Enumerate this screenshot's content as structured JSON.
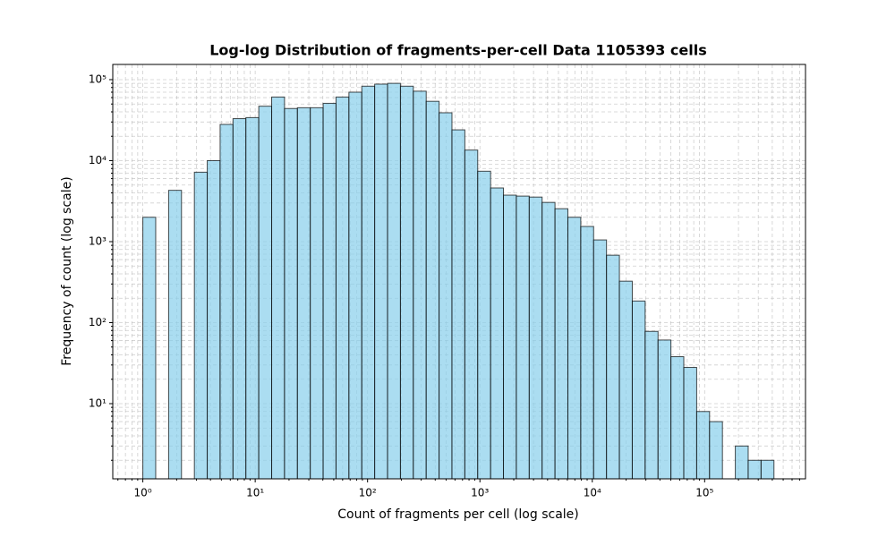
{
  "chart_data": {
    "type": "histogram",
    "title": "Log-log Distribution of fragments-per-cell Data 1105393 cells",
    "xlabel": "Count of fragments per cell (log scale)",
    "ylabel": "Frequency of count (log scale)",
    "bins": [
      1,
      1.302,
      1.696,
      2.208,
      2.875,
      3.743,
      4.873,
      6.345,
      8.262,
      10.76,
      14.01,
      18.24,
      23.75,
      30.92,
      40.26,
      52.42,
      68.25,
      88.86,
      115.7,
      150.7,
      196.2,
      255.4,
      332.6,
      433.1,
      563.9,
      734.2,
      955.9,
      1245,
      1620,
      2110,
      2748,
      3577,
      4658,
      6065,
      7897,
      10282,
      13388,
      17432,
      22697,
      29553,
      38480,
      50104,
      65238,
      84943,
      110600,
      144010,
      187510,
      244150,
      317900,
      413920
    ],
    "values": [
      2000,
      0,
      4300,
      0,
      7200,
      10000,
      28000,
      33000,
      34000,
      47000,
      61000,
      44000,
      45000,
      45000,
      51000,
      61000,
      70000,
      83000,
      88000,
      90000,
      83000,
      72000,
      54000,
      39000,
      24000,
      13500,
      7400,
      4600,
      3750,
      3650,
      3550,
      3050,
      2550,
      2000,
      1540,
      1050,
      680,
      325,
      185,
      78,
      61,
      38,
      28,
      8,
      6,
      0,
      3,
      2,
      2
    ],
    "color": "#87ceeb",
    "xscale": "log",
    "yscale": "log",
    "grid": true,
    "xlim": [
      0.54,
      790000
    ],
    "ylim": [
      1.18,
      154000
    ],
    "xticks": [
      {
        "value": 1,
        "label": "10⁰"
      },
      {
        "value": 10,
        "label": "10¹"
      },
      {
        "value": 100,
        "label": "10²"
      },
      {
        "value": 1000,
        "label": "10³"
      },
      {
        "value": 10000,
        "label": "10⁴"
      },
      {
        "value": 100000,
        "label": "10⁵"
      }
    ],
    "yticks": [
      {
        "value": 10,
        "label": "10¹"
      },
      {
        "value": 100,
        "label": "10²"
      },
      {
        "value": 1000,
        "label": "10³"
      },
      {
        "value": 10000,
        "label": "10⁴"
      },
      {
        "value": 100000,
        "label": "10⁵"
      }
    ],
    "xminor_ticks": [
      0.6,
      0.7,
      0.8,
      0.9,
      2,
      3,
      4,
      5,
      6,
      7,
      8,
      9,
      20,
      30,
      40,
      50,
      60,
      70,
      80,
      90,
      200,
      300,
      400,
      500,
      600,
      700,
      800,
      900,
      2000,
      3000,
      4000,
      5000,
      6000,
      7000,
      8000,
      9000,
      20000,
      30000,
      40000,
      50000,
      60000,
      70000,
      80000,
      90000,
      200000,
      300000,
      400000,
      500000,
      600000,
      700000
    ],
    "yminor_ticks": [
      2,
      3,
      4,
      5,
      6,
      7,
      8,
      9,
      20,
      30,
      40,
      50,
      60,
      70,
      80,
      90,
      200,
      300,
      400,
      500,
      600,
      700,
      800,
      900,
      2000,
      3000,
      4000,
      5000,
      6000,
      7000,
      8000,
      9000,
      20000,
      30000,
      40000,
      50000,
      60000,
      70000,
      80000,
      90000
    ]
  }
}
